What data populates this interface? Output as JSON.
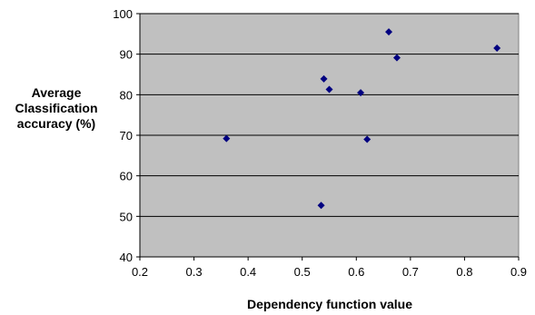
{
  "chart_data": {
    "type": "scatter",
    "title": "",
    "xlabel": "Dependency function value",
    "ylabel_lines": [
      "Average",
      "Classification",
      "accuracy (%)"
    ],
    "xlim": [
      0.2,
      0.9
    ],
    "ylim": [
      40,
      100
    ],
    "x_ticks": [
      "0.2",
      "0.3",
      "0.4",
      "0.5",
      "0.6",
      "0.7",
      "0.8",
      "0.9"
    ],
    "y_ticks": [
      "40",
      "50",
      "60",
      "70",
      "80",
      "90",
      "100"
    ],
    "grid": "horizontal",
    "legend": "none",
    "plot_background": "#c0c0c0",
    "marker_color": "#000080",
    "marker": "diamond",
    "points": [
      {
        "x": 0.36,
        "y": 69.2
      },
      {
        "x": 0.535,
        "y": 52.7
      },
      {
        "x": 0.54,
        "y": 83.9
      },
      {
        "x": 0.55,
        "y": 81.3
      },
      {
        "x": 0.608,
        "y": 80.5
      },
      {
        "x": 0.62,
        "y": 69.0
      },
      {
        "x": 0.66,
        "y": 95.5
      },
      {
        "x": 0.675,
        "y": 89.1
      },
      {
        "x": 0.86,
        "y": 91.5
      }
    ]
  }
}
